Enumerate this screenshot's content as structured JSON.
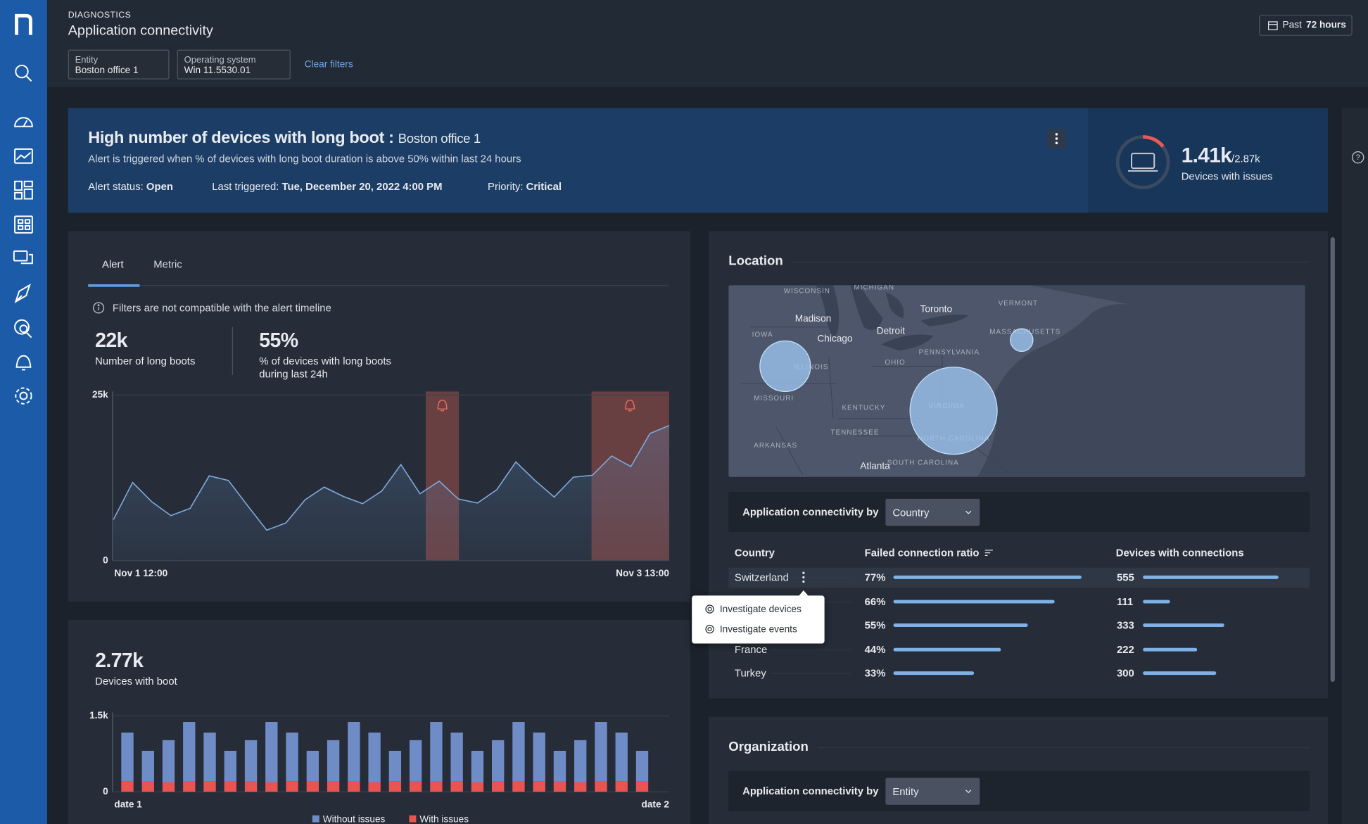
{
  "header": {
    "section": "DIAGNOSTICS",
    "title": "Application connectivity",
    "filters": [
      {
        "label": "Entity",
        "value": "Boston office 1"
      },
      {
        "label": "Operating system",
        "value": "Win 11.5530.01"
      }
    ],
    "clear_filters": "Clear filters",
    "date_range": {
      "prefix": "Past",
      "value": "72 hours"
    }
  },
  "alert": {
    "title": "High number of devices with long boot :",
    "entity": "Boston office 1",
    "description": "Alert is triggered when % of devices with long boot duration is above 50% within last 24 hours",
    "status": {
      "label": "Alert status:",
      "value": "Open"
    },
    "last_triggered": {
      "label": "Last triggered:",
      "value": "Tue, December 20, 2022 4:00 PM"
    },
    "priority": {
      "label": "Priority:",
      "value": "Critical"
    },
    "devices": {
      "value": "1.41k",
      "total": "/2.87k",
      "label": "Devices with issues"
    }
  },
  "boots_panel": {
    "tabs": [
      "Alert",
      "Metric"
    ],
    "note": "Filters are not compatible with the alert timeline",
    "stats": [
      {
        "value": "22k",
        "label": "Number of long boots"
      },
      {
        "value": "55%",
        "label": "% of devices with long boots during last 24h"
      }
    ],
    "chart": {
      "type": "line",
      "color": "#7fa9dc",
      "categories": [
        "Nov 1 12:00",
        null,
        null,
        null,
        null,
        null,
        null,
        null,
        null,
        null,
        null,
        null,
        null,
        null,
        null,
        null,
        null,
        null,
        null,
        null,
        null,
        null,
        null,
        null,
        null,
        null,
        null,
        null,
        null,
        "Nov 3 13:00"
      ],
      "values": [
        6200,
        11800,
        8900,
        6800,
        7900,
        12800,
        12100,
        8300,
        4600,
        5700,
        9200,
        11100,
        9700,
        8600,
        10500,
        14500,
        10100,
        12000,
        9300,
        8700,
        10700,
        14900,
        12100,
        9600,
        12600,
        12900,
        15800,
        14200,
        19200,
        20400
      ],
      "ylim": [
        0,
        25000
      ],
      "yticks": [
        0,
        {
          "value": 25000,
          "label": "25k"
        }
      ],
      "grid": true
    }
  },
  "boot_devices_panel": {
    "stat": {
      "value": "2.77k",
      "label": "Devices with boot"
    },
    "chart": {
      "type": "bar",
      "stacked": true,
      "categories": [
        "date 1",
        null,
        null,
        null,
        null,
        null,
        null,
        null,
        null,
        null,
        null,
        null,
        null,
        null,
        null,
        null,
        null,
        null,
        null,
        null,
        null,
        null,
        null,
        null,
        null,
        "date 2"
      ],
      "series": [
        {
          "name": "Without issues",
          "color": "#6f8cc7",
          "values": [
            960,
            610,
            830,
            1180,
            960,
            610,
            820,
            1190,
            960,
            610,
            820,
            1180,
            980,
            600,
            820,
            1180,
            960,
            620,
            820,
            1180,
            960,
            610,
            830,
            1180,
            960,
            610
          ]
        },
        {
          "name": "With issues",
          "color": "#ea5450",
          "values": [
            210,
            200,
            190,
            200,
            210,
            200,
            200,
            190,
            210,
            200,
            200,
            200,
            190,
            210,
            200,
            200,
            210,
            190,
            200,
            200,
            210,
            200,
            190,
            200,
            210,
            200
          ]
        }
      ],
      "ylim": [
        0,
        1500
      ],
      "yticks": [
        0,
        {
          "value": 1500,
          "label": "1.5k"
        }
      ],
      "grid": true
    }
  },
  "location": {
    "title": "Location",
    "map_labels": [
      "WISCONSIN",
      "MICHIGAN",
      "Toronto",
      "VERMONT",
      "Madison",
      "Chicago",
      "Detroit",
      "IOWA",
      "ILLINOIS",
      "OHIO",
      "PENNSYLVANIA",
      "MASSACHUSETTS",
      "MISSOURI",
      "KENTUCKY",
      "VIRGINIA",
      "TENNESSEE",
      "ARKANSAS",
      "NORTH CAROLINA",
      "SOUTH CAROLINA",
      "Atlanta"
    ],
    "group_by": {
      "label": "Application connectivity by",
      "value": "Country"
    },
    "table": {
      "columns": [
        "Country",
        "Failed connection ratio",
        "Devices with connections"
      ],
      "rows": [
        {
          "country": "Switzerland",
          "failed_ratio": 77,
          "failed_ratio_label": "77%",
          "devices": 555
        },
        {
          "country": null,
          "failed_ratio": 66,
          "failed_ratio_label": "66%",
          "devices": 111
        },
        {
          "country": null,
          "failed_ratio": 55,
          "failed_ratio_label": "55%",
          "devices": 333
        },
        {
          "country": "France",
          "failed_ratio": 44,
          "failed_ratio_label": "44%",
          "devices": 222
        },
        {
          "country": "Turkey",
          "failed_ratio": 33,
          "failed_ratio_label": "33%",
          "devices": 300
        }
      ]
    },
    "row_menu": [
      "Investigate devices",
      "Investigate events"
    ]
  },
  "organization": {
    "title": "Organization",
    "group_by": {
      "label": "Application connectivity by",
      "value": "Entity"
    }
  }
}
